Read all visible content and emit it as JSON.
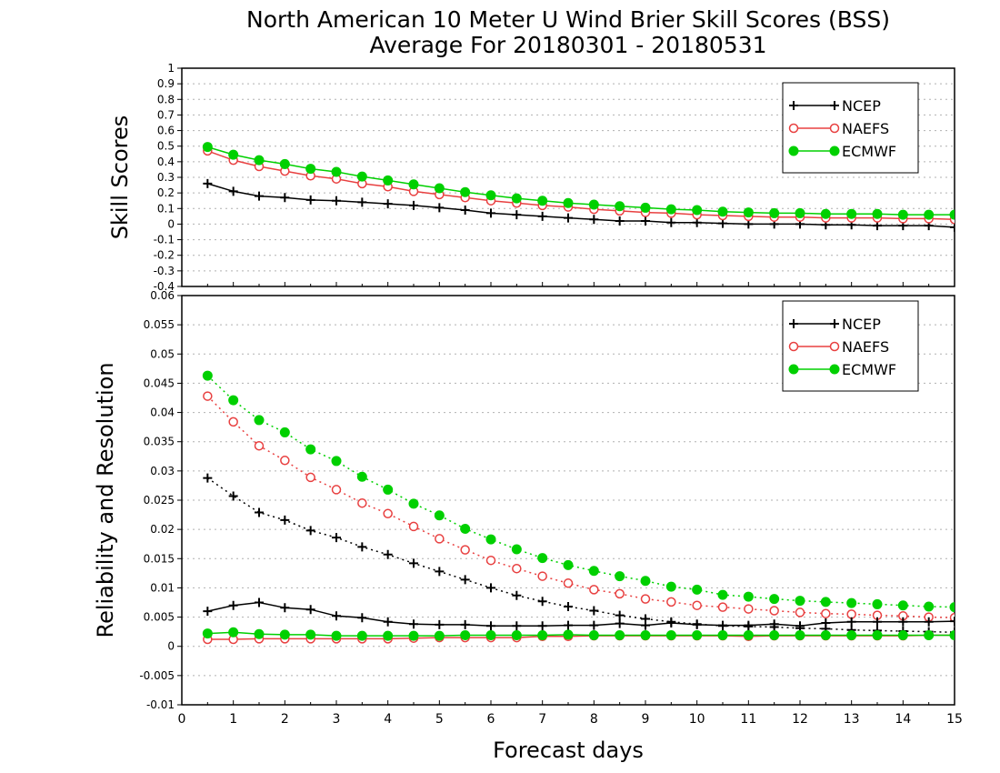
{
  "title_line1": "North American 10 Meter U Wind Brier Skill Scores (BSS)",
  "title_line2": "Average For 20180301 - 20180531",
  "xlabel": "Forecast days",
  "colors": {
    "NCEP": "#000000",
    "NAEFS": "#e84040",
    "ECMWF": "#00d000"
  },
  "chart_data": [
    {
      "type": "line",
      "ylabel": "Skill Scores",
      "xlim": [
        0,
        15
      ],
      "ylim": [
        -0.4,
        1
      ],
      "x_ticks": [
        0,
        1,
        2,
        3,
        4,
        5,
        6,
        7,
        8,
        9,
        10,
        11,
        12,
        13,
        14,
        15
      ],
      "y_ticks": [
        "-0.4",
        "-0.3",
        "-0.2",
        "-0.1",
        "0",
        "0.1",
        "0.2",
        "0.3",
        "0.4",
        "0.5",
        "0.6",
        "0.7",
        "0.8",
        "0.9",
        "1"
      ],
      "grid": true,
      "legend_position": "top-right",
      "x": [
        0.5,
        1,
        1.5,
        2,
        2.5,
        3,
        3.5,
        4,
        4.5,
        5,
        5.5,
        6,
        6.5,
        7,
        7.5,
        8,
        8.5,
        9,
        9.5,
        10,
        10.5,
        11,
        11.5,
        12,
        12.5,
        13,
        13.5,
        14,
        14.5,
        15
      ],
      "series": [
        {
          "name": "NCEP",
          "style": "solid",
          "marker": "plus",
          "values": [
            0.26,
            0.21,
            0.18,
            0.17,
            0.155,
            0.15,
            0.14,
            0.13,
            0.12,
            0.105,
            0.09,
            0.07,
            0.06,
            0.05,
            0.04,
            0.03,
            0.02,
            0.02,
            0.01,
            0.01,
            0.005,
            0.0,
            0.0,
            0.0,
            -0.005,
            -0.005,
            -0.01,
            -0.01,
            -0.01,
            -0.02
          ]
        },
        {
          "name": "NAEFS",
          "style": "solid",
          "marker": "open-circle",
          "values": [
            0.47,
            0.41,
            0.37,
            0.34,
            0.31,
            0.29,
            0.26,
            0.24,
            0.21,
            0.19,
            0.17,
            0.15,
            0.135,
            0.12,
            0.11,
            0.095,
            0.085,
            0.075,
            0.07,
            0.06,
            0.055,
            0.05,
            0.045,
            0.045,
            0.04,
            0.04,
            0.04,
            0.035,
            0.035,
            0.03
          ]
        },
        {
          "name": "ECMWF",
          "style": "solid",
          "marker": "filled-circle",
          "values": [
            0.495,
            0.445,
            0.41,
            0.385,
            0.355,
            0.335,
            0.305,
            0.28,
            0.255,
            0.23,
            0.205,
            0.185,
            0.165,
            0.15,
            0.135,
            0.125,
            0.115,
            0.105,
            0.095,
            0.09,
            0.08,
            0.075,
            0.07,
            0.07,
            0.065,
            0.065,
            0.065,
            0.06,
            0.06,
            0.06
          ]
        }
      ]
    },
    {
      "type": "line",
      "ylabel": "Reliability and Resolution",
      "xlim": [
        0,
        15
      ],
      "ylim": [
        -0.01,
        0.06
      ],
      "x_ticks": [
        0,
        1,
        2,
        3,
        4,
        5,
        6,
        7,
        8,
        9,
        10,
        11,
        12,
        13,
        14,
        15
      ],
      "y_ticks": [
        "-0.01",
        "-0.005",
        "0",
        "0.005",
        "0.01",
        "0.015",
        "0.02",
        "0.025",
        "0.03",
        "0.035",
        "0.04",
        "0.045",
        "0.05",
        "0.055",
        "0.06"
      ],
      "grid": true,
      "legend_position": "top-right",
      "x": [
        0.5,
        1,
        1.5,
        2,
        2.5,
        3,
        3.5,
        4,
        4.5,
        5,
        5.5,
        6,
        6.5,
        7,
        7.5,
        8,
        8.5,
        9,
        9.5,
        10,
        10.5,
        11,
        11.5,
        12,
        12.5,
        13,
        13.5,
        14,
        14.5,
        15
      ],
      "series": [
        {
          "name": "NCEP",
          "style": "dotted",
          "marker": "plus",
          "values": [
            0.0288,
            0.0257,
            0.0229,
            0.0216,
            0.0198,
            0.0186,
            0.017,
            0.0157,
            0.0142,
            0.0128,
            0.0114,
            0.01,
            0.0087,
            0.0077,
            0.0068,
            0.0061,
            0.0053,
            0.0047,
            0.0042,
            0.0038,
            0.0035,
            0.0034,
            0.0033,
            0.0031,
            0.003,
            0.0028,
            0.0027,
            0.0026,
            0.0025,
            0.0024
          ]
        },
        {
          "name": "NAEFS",
          "style": "dotted",
          "marker": "open-circle",
          "values": [
            0.0428,
            0.0384,
            0.0343,
            0.0318,
            0.0289,
            0.0268,
            0.0245,
            0.0227,
            0.0205,
            0.0184,
            0.0165,
            0.0147,
            0.0133,
            0.012,
            0.0108,
            0.0097,
            0.009,
            0.0081,
            0.0076,
            0.007,
            0.0067,
            0.0064,
            0.0061,
            0.0058,
            0.0056,
            0.0055,
            0.0053,
            0.0052,
            0.005,
            0.0049
          ]
        },
        {
          "name": "ECMWF",
          "style": "dotted",
          "marker": "filled-circle",
          "values": [
            0.0463,
            0.0421,
            0.0387,
            0.0366,
            0.0337,
            0.0317,
            0.029,
            0.0268,
            0.0244,
            0.0224,
            0.0201,
            0.0183,
            0.0166,
            0.0151,
            0.0139,
            0.0129,
            0.012,
            0.0112,
            0.0102,
            0.0097,
            0.0088,
            0.0085,
            0.0081,
            0.0078,
            0.0076,
            0.0074,
            0.0072,
            0.007,
            0.0068,
            0.0067
          ]
        },
        {
          "name": "NCEP",
          "style": "solid",
          "marker": "plus",
          "values": [
            0.006,
            0.007,
            0.0075,
            0.0066,
            0.0063,
            0.0052,
            0.0049,
            0.0042,
            0.0038,
            0.0037,
            0.0037,
            0.0035,
            0.0035,
            0.0035,
            0.0036,
            0.0036,
            0.0039,
            0.0036,
            0.004,
            0.0037,
            0.0036,
            0.0036,
            0.0038,
            0.0035,
            0.004,
            0.0042,
            0.0042,
            0.0042,
            0.0042,
            0.0043
          ]
        },
        {
          "name": "NAEFS",
          "style": "solid",
          "marker": "open-circle",
          "values": [
            0.0012,
            0.0012,
            0.0013,
            0.0013,
            0.0013,
            0.0013,
            0.0013,
            0.0013,
            0.0014,
            0.0015,
            0.0015,
            0.0015,
            0.0015,
            0.0017,
            0.0017,
            0.0018,
            0.0018,
            0.0018,
            0.0018,
            0.0018,
            0.0018,
            0.0017,
            0.0018,
            0.0018,
            0.0018,
            0.0018,
            0.0018,
            0.0018,
            0.0019,
            0.0019
          ]
        },
        {
          "name": "ECMWF",
          "style": "solid",
          "marker": "filled-circle",
          "values": [
            0.0022,
            0.0024,
            0.0021,
            0.002,
            0.002,
            0.0018,
            0.0018,
            0.0018,
            0.0018,
            0.0018,
            0.0019,
            0.0019,
            0.0019,
            0.0019,
            0.002,
            0.0019,
            0.0019,
            0.0019,
            0.0019,
            0.0019,
            0.0019,
            0.0019,
            0.0019,
            0.0019,
            0.0019,
            0.0019,
            0.0019,
            0.0019,
            0.0019,
            0.0019
          ]
        }
      ]
    }
  ]
}
